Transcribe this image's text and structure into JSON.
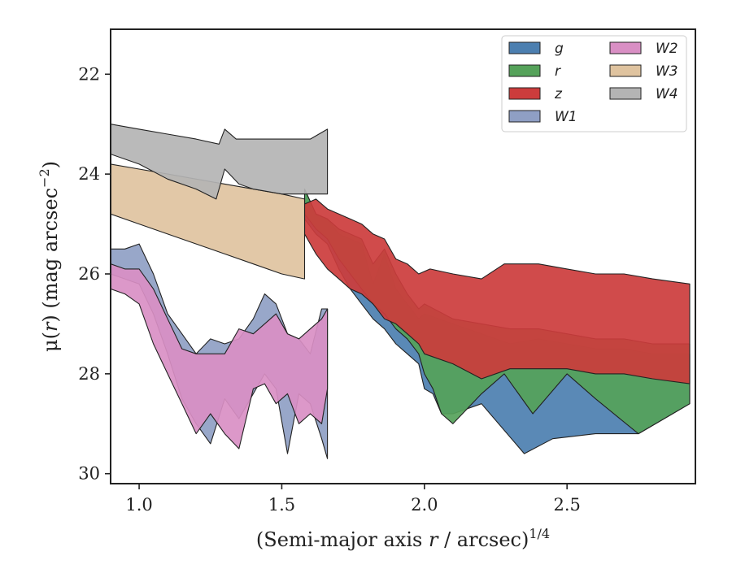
{
  "chart_data": {
    "type": "area",
    "xlabel_main": "(Semi-major axis ",
    "xlabel_var": "r",
    "xlabel_rest": " / arcsec)",
    "xlabel_sup": "1/4",
    "ylabel_main": "μ(",
    "ylabel_var": "r",
    "ylabel_rest": ") (mag arcsec",
    "ylabel_sup": "−2",
    "ylabel_close": ")",
    "xlim": [
      0.9,
      2.95
    ],
    "ylim": [
      30.2,
      21.1
    ],
    "y_inverted": true,
    "xticks": [
      1.0,
      1.5,
      2.0,
      2.5
    ],
    "xtick_labels": [
      "1.0",
      "1.5",
      "2.0",
      "2.5"
    ],
    "yticks": [
      22,
      24,
      26,
      28,
      30
    ],
    "ytick_labels": [
      "22",
      "24",
      "26",
      "28",
      "30"
    ],
    "grid": false,
    "legend_placement": "top-right",
    "legend_columns": 2,
    "series": [
      {
        "name": "g",
        "color": "#4c7fb0",
        "upper": [
          [
            1.58,
            24.3
          ],
          [
            1.62,
            24.8
          ],
          [
            1.66,
            24.9
          ],
          [
            1.7,
            25.2
          ],
          [
            1.74,
            25.3
          ],
          [
            1.78,
            25.4
          ],
          [
            1.82,
            26.2
          ],
          [
            1.86,
            25.6
          ],
          [
            1.9,
            26.3
          ],
          [
            1.94,
            26.6
          ],
          [
            1.98,
            26.9
          ],
          [
            2.0,
            26.8
          ],
          [
            2.1,
            27.0
          ],
          [
            2.2,
            27.2
          ],
          [
            2.3,
            27.4
          ],
          [
            2.4,
            27.3
          ],
          [
            2.5,
            27.4
          ],
          [
            2.6,
            27.5
          ],
          [
            2.7,
            27.5
          ],
          [
            2.8,
            27.6
          ],
          [
            2.93,
            27.6
          ]
        ],
        "lower": [
          [
            1.58,
            24.9
          ],
          [
            1.62,
            25.2
          ],
          [
            1.66,
            25.4
          ],
          [
            1.7,
            25.9
          ],
          [
            1.74,
            26.3
          ],
          [
            1.78,
            26.6
          ],
          [
            1.82,
            26.9
          ],
          [
            1.86,
            27.1
          ],
          [
            1.9,
            27.4
          ],
          [
            1.94,
            27.6
          ],
          [
            1.98,
            27.8
          ],
          [
            2.0,
            28.3
          ],
          [
            2.03,
            28.4
          ],
          [
            2.06,
            28.8
          ],
          [
            2.1,
            28.8
          ],
          [
            2.2,
            28.6
          ],
          [
            2.35,
            29.6
          ],
          [
            2.45,
            29.3
          ],
          [
            2.6,
            29.2
          ],
          [
            2.75,
            29.2
          ],
          [
            2.93,
            28.6
          ]
        ]
      },
      {
        "name": "r",
        "color": "#55a25a",
        "upper": [
          [
            1.58,
            24.3
          ],
          [
            1.62,
            24.8
          ],
          [
            1.66,
            24.9
          ],
          [
            1.7,
            25.1
          ],
          [
            1.74,
            25.2
          ],
          [
            1.78,
            25.3
          ],
          [
            1.82,
            25.8
          ],
          [
            1.86,
            25.5
          ],
          [
            1.9,
            26.0
          ],
          [
            1.94,
            26.4
          ],
          [
            1.98,
            26.7
          ],
          [
            2.0,
            26.6
          ],
          [
            2.1,
            26.9
          ],
          [
            2.2,
            27.0
          ],
          [
            2.3,
            27.1
          ],
          [
            2.4,
            27.1
          ],
          [
            2.5,
            27.2
          ],
          [
            2.6,
            27.3
          ],
          [
            2.7,
            27.3
          ],
          [
            2.8,
            27.4
          ],
          [
            2.93,
            27.4
          ]
        ],
        "lower": [
          [
            1.58,
            24.8
          ],
          [
            1.62,
            25.1
          ],
          [
            1.66,
            25.3
          ],
          [
            1.7,
            25.7
          ],
          [
            1.74,
            26.0
          ],
          [
            1.78,
            26.3
          ],
          [
            1.82,
            26.6
          ],
          [
            1.86,
            26.8
          ],
          [
            1.9,
            27.1
          ],
          [
            1.94,
            27.3
          ],
          [
            1.98,
            27.6
          ],
          [
            2.0,
            28.0
          ],
          [
            2.03,
            28.3
          ],
          [
            2.06,
            28.8
          ],
          [
            2.1,
            29.0
          ],
          [
            2.2,
            28.4
          ],
          [
            2.28,
            28.0
          ],
          [
            2.38,
            28.8
          ],
          [
            2.5,
            28.0
          ],
          [
            2.6,
            28.5
          ],
          [
            2.75,
            29.2
          ],
          [
            2.93,
            28.6
          ]
        ]
      },
      {
        "name": "z",
        "color": "#cc3c3c",
        "upper": [
          [
            1.58,
            24.6
          ],
          [
            1.62,
            24.5
          ],
          [
            1.66,
            24.7
          ],
          [
            1.7,
            24.8
          ],
          [
            1.74,
            24.9
          ],
          [
            1.78,
            25.0
          ],
          [
            1.82,
            25.2
          ],
          [
            1.86,
            25.3
          ],
          [
            1.9,
            25.7
          ],
          [
            1.94,
            25.8
          ],
          [
            1.98,
            26.0
          ],
          [
            2.02,
            25.9
          ],
          [
            2.1,
            26.0
          ],
          [
            2.2,
            26.1
          ],
          [
            2.28,
            25.8
          ],
          [
            2.4,
            25.8
          ],
          [
            2.5,
            25.9
          ],
          [
            2.6,
            26.0
          ],
          [
            2.7,
            26.0
          ],
          [
            2.8,
            26.1
          ],
          [
            2.93,
            26.2
          ]
        ],
        "lower": [
          [
            1.58,
            25.2
          ],
          [
            1.62,
            25.6
          ],
          [
            1.66,
            25.9
          ],
          [
            1.7,
            26.1
          ],
          [
            1.74,
            26.3
          ],
          [
            1.78,
            26.4
          ],
          [
            1.82,
            26.6
          ],
          [
            1.86,
            26.9
          ],
          [
            1.9,
            27.0
          ],
          [
            1.94,
            27.2
          ],
          [
            1.98,
            27.4
          ],
          [
            2.0,
            27.6
          ],
          [
            2.1,
            27.8
          ],
          [
            2.2,
            28.1
          ],
          [
            2.3,
            27.9
          ],
          [
            2.4,
            27.9
          ],
          [
            2.5,
            27.9
          ],
          [
            2.6,
            28.0
          ],
          [
            2.7,
            28.0
          ],
          [
            2.8,
            28.1
          ],
          [
            2.93,
            28.2
          ]
        ]
      },
      {
        "name": "W1",
        "color": "#8f9fc4",
        "upper": [
          [
            0.9,
            25.5
          ],
          [
            0.95,
            25.5
          ],
          [
            1.0,
            25.4
          ],
          [
            1.05,
            26.0
          ],
          [
            1.1,
            26.8
          ],
          [
            1.15,
            27.2
          ],
          [
            1.2,
            27.6
          ],
          [
            1.25,
            27.3
          ],
          [
            1.3,
            27.4
          ],
          [
            1.35,
            27.3
          ],
          [
            1.4,
            26.9
          ],
          [
            1.44,
            26.4
          ],
          [
            1.48,
            26.6
          ],
          [
            1.52,
            27.2
          ],
          [
            1.56,
            27.3
          ],
          [
            1.6,
            27.6
          ],
          [
            1.64,
            26.7
          ],
          [
            1.66,
            26.7
          ]
        ],
        "lower": [
          [
            0.9,
            26.0
          ],
          [
            0.95,
            26.1
          ],
          [
            1.0,
            26.2
          ],
          [
            1.05,
            26.8
          ],
          [
            1.1,
            27.6
          ],
          [
            1.15,
            28.5
          ],
          [
            1.2,
            29.0
          ],
          [
            1.25,
            29.4
          ],
          [
            1.3,
            28.5
          ],
          [
            1.35,
            28.9
          ],
          [
            1.4,
            28.4
          ],
          [
            1.44,
            28.0
          ],
          [
            1.48,
            28.3
          ],
          [
            1.52,
            29.6
          ],
          [
            1.56,
            28.4
          ],
          [
            1.6,
            28.6
          ],
          [
            1.64,
            29.3
          ],
          [
            1.66,
            29.7
          ]
        ]
      },
      {
        "name": "W2",
        "color": "#d98fc4",
        "upper": [
          [
            0.9,
            25.8
          ],
          [
            0.95,
            25.9
          ],
          [
            1.0,
            25.9
          ],
          [
            1.05,
            26.3
          ],
          [
            1.1,
            26.9
          ],
          [
            1.15,
            27.5
          ],
          [
            1.2,
            27.6
          ],
          [
            1.25,
            27.6
          ],
          [
            1.3,
            27.6
          ],
          [
            1.35,
            27.1
          ],
          [
            1.4,
            27.2
          ],
          [
            1.44,
            27.0
          ],
          [
            1.48,
            26.8
          ],
          [
            1.52,
            27.2
          ],
          [
            1.56,
            27.3
          ],
          [
            1.6,
            27.1
          ],
          [
            1.64,
            26.9
          ],
          [
            1.66,
            26.7
          ]
        ],
        "lower": [
          [
            0.9,
            26.3
          ],
          [
            0.95,
            26.4
          ],
          [
            1.0,
            26.6
          ],
          [
            1.05,
            27.4
          ],
          [
            1.1,
            28.0
          ],
          [
            1.15,
            28.6
          ],
          [
            1.2,
            29.2
          ],
          [
            1.25,
            28.8
          ],
          [
            1.3,
            29.2
          ],
          [
            1.35,
            29.5
          ],
          [
            1.4,
            28.3
          ],
          [
            1.44,
            28.2
          ],
          [
            1.48,
            28.6
          ],
          [
            1.52,
            28.4
          ],
          [
            1.56,
            29.0
          ],
          [
            1.6,
            28.8
          ],
          [
            1.64,
            29.0
          ],
          [
            1.66,
            28.3
          ]
        ]
      },
      {
        "name": "W3",
        "color": "#dfc39f",
        "upper": [
          [
            0.9,
            23.8
          ],
          [
            1.0,
            23.9
          ],
          [
            1.1,
            24.0
          ],
          [
            1.2,
            24.1
          ],
          [
            1.3,
            24.2
          ],
          [
            1.4,
            24.3
          ],
          [
            1.5,
            24.4
          ],
          [
            1.58,
            24.5
          ]
        ],
        "lower": [
          [
            0.9,
            24.8
          ],
          [
            1.0,
            25.0
          ],
          [
            1.1,
            25.2
          ],
          [
            1.2,
            25.4
          ],
          [
            1.3,
            25.6
          ],
          [
            1.4,
            25.8
          ],
          [
            1.5,
            26.0
          ],
          [
            1.58,
            26.1
          ]
        ]
      },
      {
        "name": "W4",
        "color": "#b4b4b4",
        "upper": [
          [
            0.9,
            23.0
          ],
          [
            1.0,
            23.1
          ],
          [
            1.1,
            23.2
          ],
          [
            1.2,
            23.3
          ],
          [
            1.28,
            23.4
          ],
          [
            1.3,
            23.1
          ],
          [
            1.34,
            23.3
          ],
          [
            1.4,
            23.3
          ],
          [
            1.5,
            23.3
          ],
          [
            1.6,
            23.3
          ],
          [
            1.66,
            23.1
          ]
        ],
        "lower": [
          [
            0.9,
            23.6
          ],
          [
            1.0,
            23.8
          ],
          [
            1.1,
            24.1
          ],
          [
            1.2,
            24.3
          ],
          [
            1.27,
            24.5
          ],
          [
            1.3,
            23.9
          ],
          [
            1.35,
            24.2
          ],
          [
            1.4,
            24.3
          ],
          [
            1.5,
            24.4
          ],
          [
            1.6,
            24.4
          ],
          [
            1.66,
            24.4
          ]
        ]
      }
    ]
  }
}
